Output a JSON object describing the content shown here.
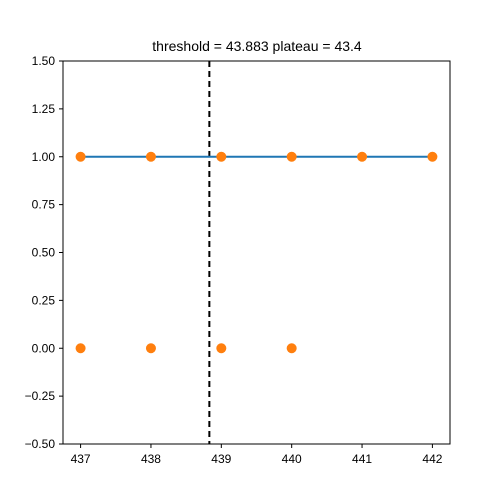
{
  "chart_data": {
    "type": "scatter",
    "title": "threshold = 43.883 plateau = 43.4",
    "xlabel": "",
    "ylabel": "",
    "xlim": [
      436.75,
      442.25
    ],
    "ylim": [
      -0.5,
      1.5
    ],
    "x_ticks": [
      {
        "value": 437,
        "label": "437"
      },
      {
        "value": 438,
        "label": "438"
      },
      {
        "value": 439,
        "label": "439"
      },
      {
        "value": 440,
        "label": "440"
      },
      {
        "value": 441,
        "label": "441"
      },
      {
        "value": 442,
        "label": "442"
      }
    ],
    "y_ticks": [
      {
        "value": -0.5,
        "label": "−0.50"
      },
      {
        "value": -0.25,
        "label": "−0.25"
      },
      {
        "value": 0.0,
        "label": "0.00"
      },
      {
        "value": 0.25,
        "label": "0.25"
      },
      {
        "value": 0.5,
        "label": "0.50"
      },
      {
        "value": 0.75,
        "label": "0.75"
      },
      {
        "value": 1.0,
        "label": "1.00"
      },
      {
        "value": 1.25,
        "label": "1.25"
      },
      {
        "value": 1.5,
        "label": "1.50"
      }
    ],
    "grid": false,
    "legend": "none",
    "series": [
      {
        "kind": "line",
        "color": "#1f77b4",
        "x": [
          437,
          442
        ],
        "y": [
          1.0,
          1.0
        ]
      },
      {
        "kind": "scatter",
        "color": "#ff7f0e",
        "x": [
          437,
          438,
          439,
          440,
          441,
          442,
          437,
          438,
          439,
          440
        ],
        "y": [
          1,
          1,
          1,
          1,
          1,
          1,
          0,
          0,
          0,
          0
        ]
      }
    ],
    "threshold_line": {
      "x": 438.83,
      "color": "#000000",
      "style": "dashed"
    }
  }
}
